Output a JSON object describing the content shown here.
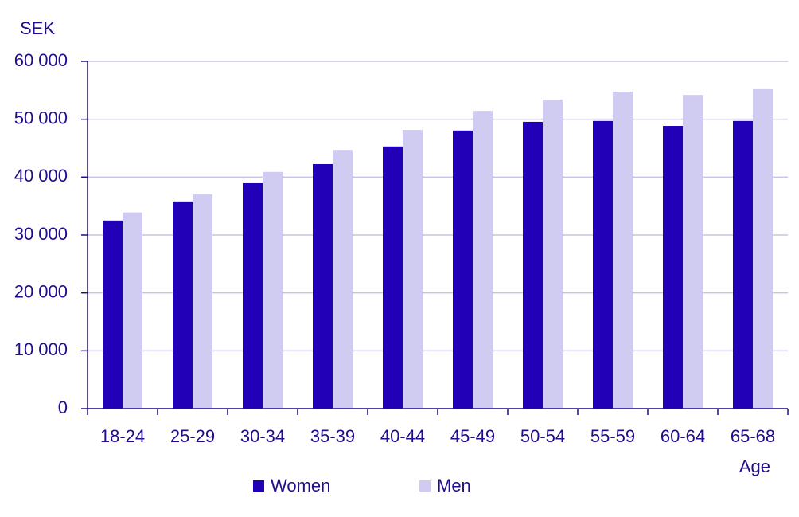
{
  "chart_data": {
    "type": "bar",
    "y_label": "SEK",
    "x_label": "Age",
    "categories": [
      "18-24",
      "25-29",
      "30-34",
      "35-39",
      "40-44",
      "45-49",
      "50-54",
      "55-59",
      "60-64",
      "65-68"
    ],
    "series": [
      {
        "name": "Women",
        "color": "#2200b8",
        "values": [
          32500,
          35800,
          38950,
          42250,
          45300,
          48050,
          49550,
          49700,
          48850,
          49700
        ]
      },
      {
        "name": "Men",
        "color": "#d0cbf0",
        "values": [
          33900,
          37000,
          40900,
          44700,
          48150,
          51450,
          53400,
          54750,
          54200,
          55200
        ]
      }
    ],
    "ylim": [
      0,
      60000
    ],
    "yticks": [
      0,
      {
        "value": 10000,
        "label": "10 000"
      },
      {
        "value": 20000,
        "label": "20 000"
      },
      {
        "value": 30000,
        "label": "30 000"
      },
      {
        "value": 40000,
        "label": "40 000"
      },
      {
        "value": 50000,
        "label": "50 000"
      },
      {
        "value": 60000,
        "label": "60 000"
      }
    ],
    "grid": true
  }
}
